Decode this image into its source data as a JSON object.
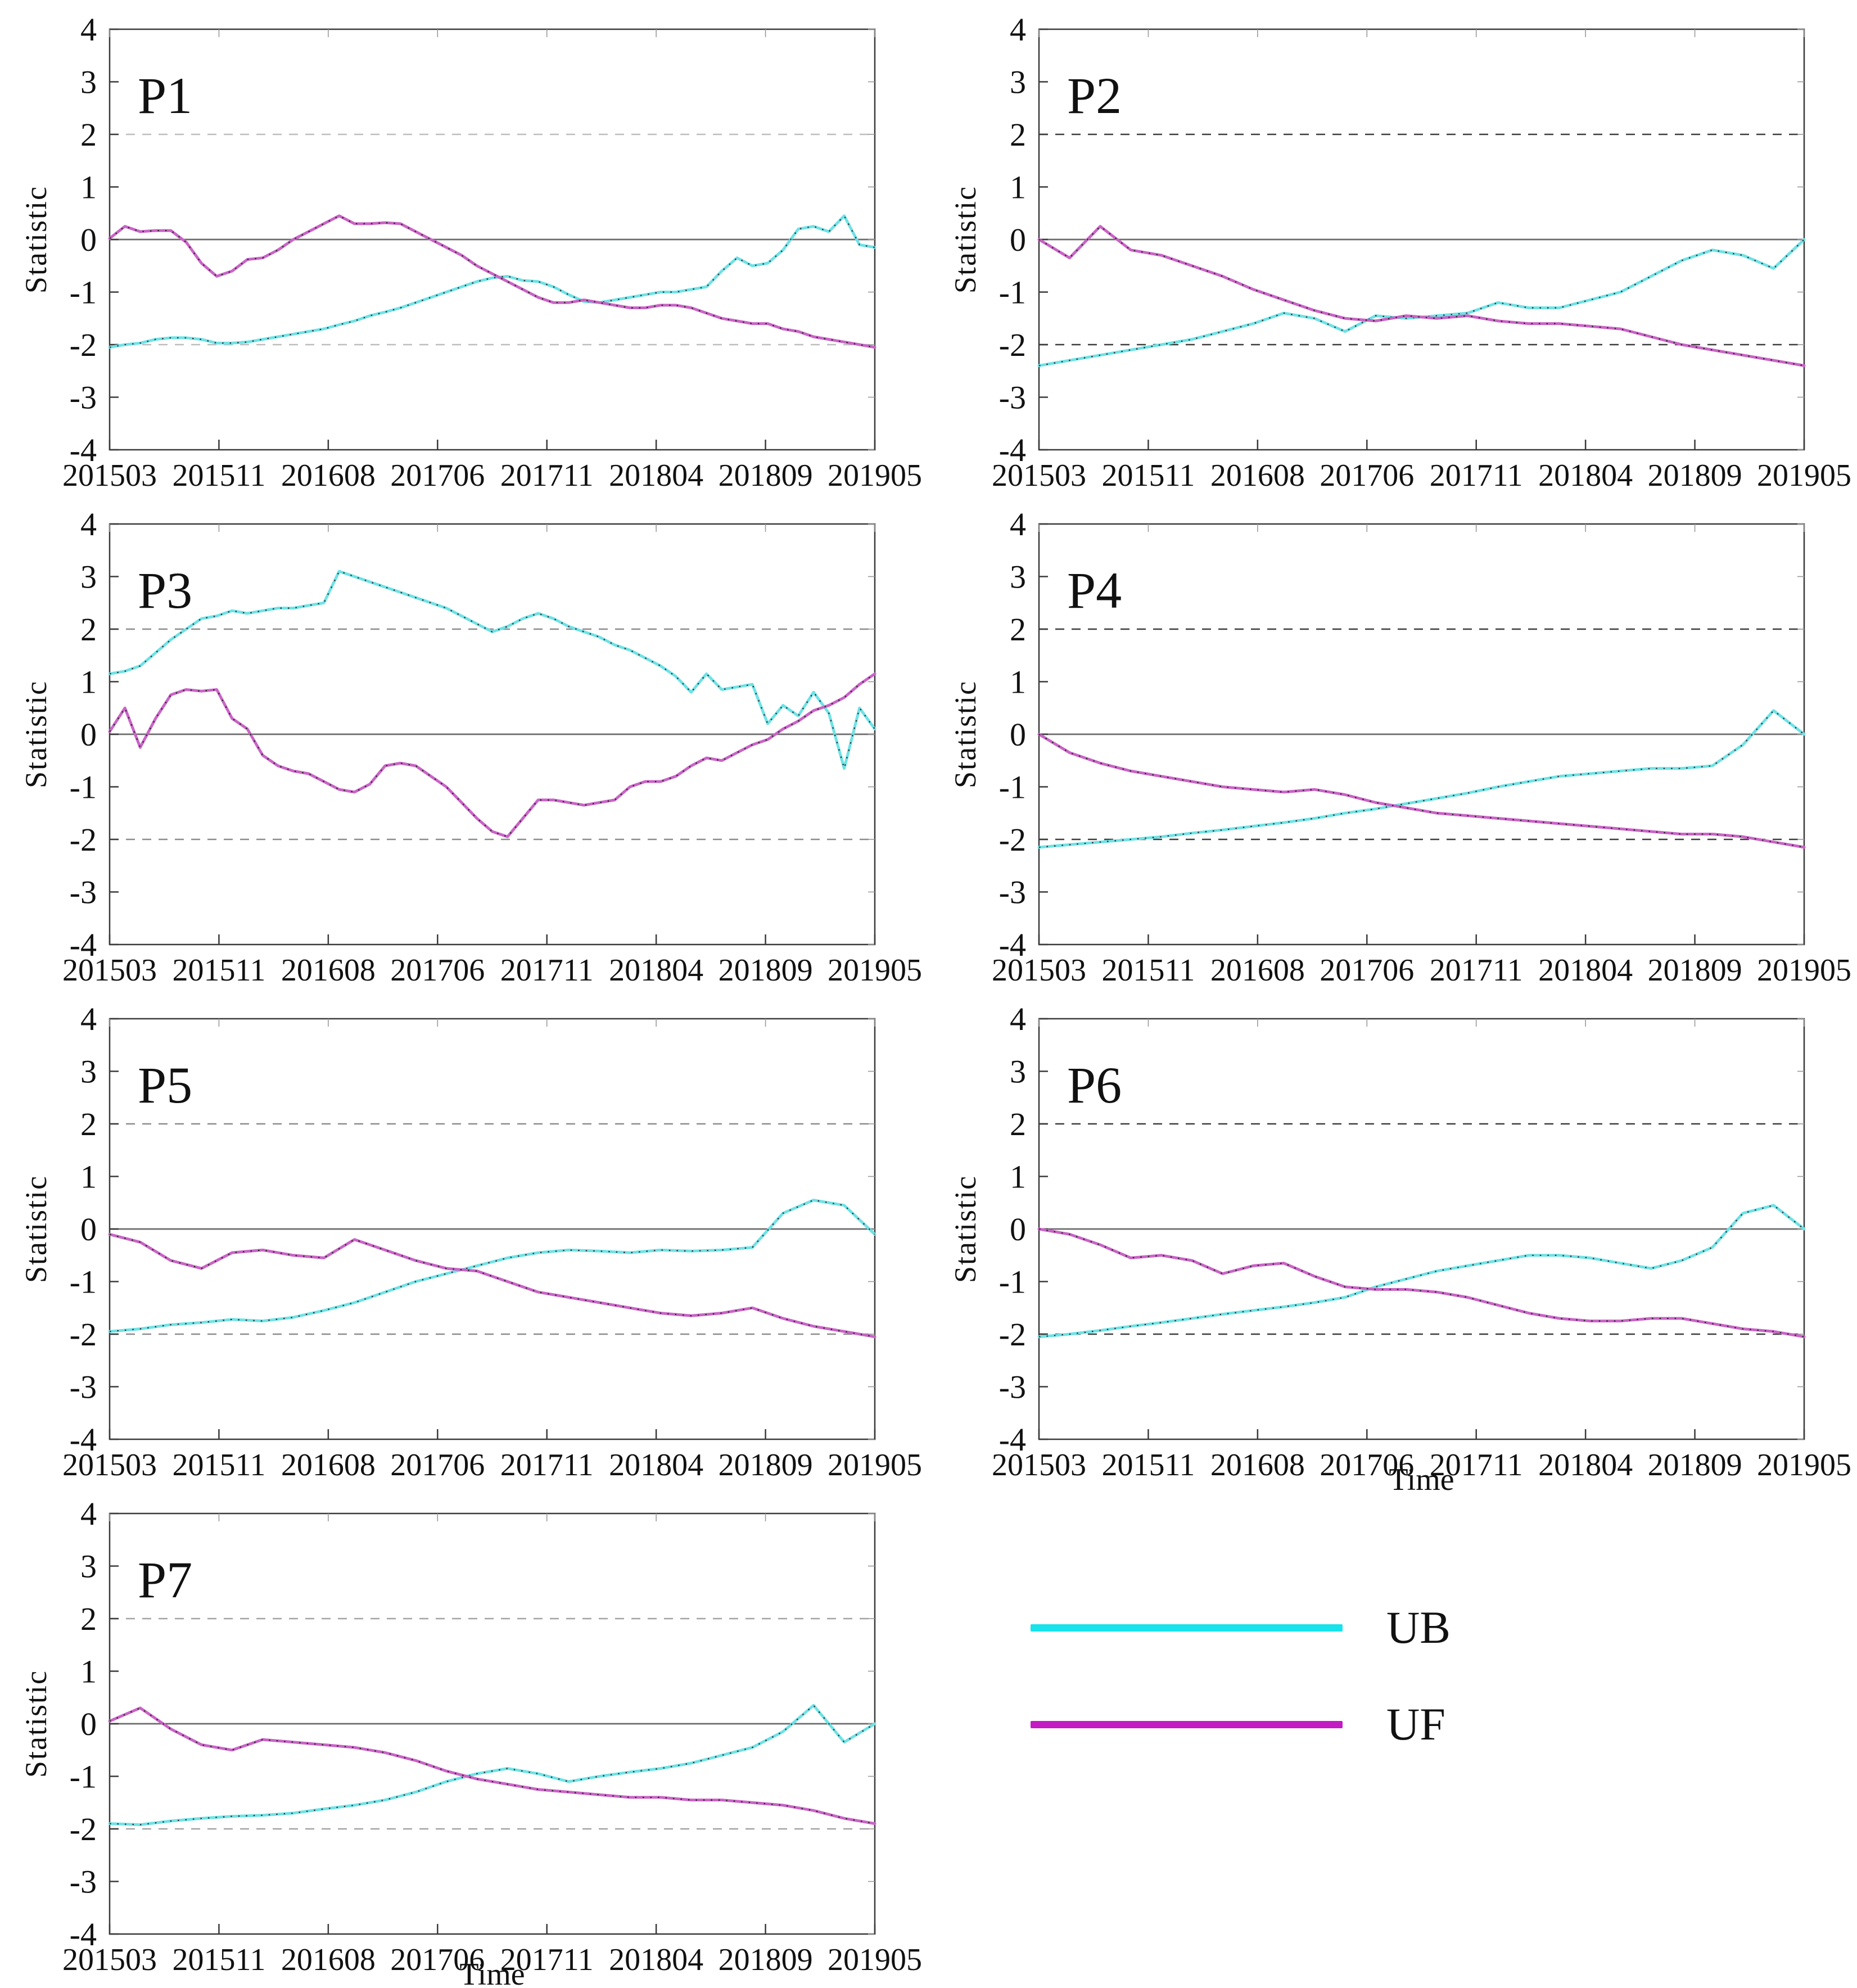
{
  "page": {
    "background": "#ffffff"
  },
  "colors": {
    "ub_line": "#6fe2e6",
    "uf_line": "#c964c6",
    "ub_legend": "#18e2ea",
    "uf_legend": "#c31ac4",
    "marker_overlay": "#1b1b1b",
    "zero_line": "#6b6b6b",
    "axis_frame": "#3a3a3a",
    "minor_tick": "#9a9a9a",
    "text": "#111111"
  },
  "axis": {
    "ylabel": "Statistic",
    "xlabel": "Time",
    "ylim": [
      -4,
      4
    ],
    "yticks": [
      4,
      3,
      2,
      1,
      0,
      -1,
      -2,
      -3,
      -4
    ],
    "xticklabels": [
      "201503",
      "201511",
      "201608",
      "201706",
      "201711",
      "201804",
      "201809",
      "201905"
    ],
    "reference_lines": {
      "zero": 0,
      "upper_threshold": 2,
      "lower_threshold": -2
    },
    "grid": "off",
    "legend_position": "below-right"
  },
  "legend": {
    "items": [
      {
        "label": "UB",
        "color": "#18e2ea"
      },
      {
        "label": "UF",
        "color": "#c31ac4"
      }
    ]
  },
  "chart_data": [
    {
      "id": "P1",
      "type": "line",
      "title": "P1",
      "dash_color": "#bdbdbd",
      "show_time_label": false,
      "series": [
        {
          "name": "UB",
          "values": [
            -2.05,
            -2.0,
            -1.97,
            -1.9,
            -1.87,
            -1.87,
            -1.9,
            -1.97,
            -1.97,
            -1.95,
            -1.9,
            -1.85,
            -1.8,
            -1.75,
            -1.7,
            -1.62,
            -1.55,
            -1.45,
            -1.38,
            -1.3,
            -1.2,
            -1.1,
            -1.0,
            -0.9,
            -0.8,
            -0.73,
            -0.7,
            -0.78,
            -0.8,
            -0.9,
            -1.05,
            -1.18,
            -1.2,
            -1.15,
            -1.1,
            -1.05,
            -1.0,
            -1.0,
            -0.95,
            -0.9,
            -0.6,
            -0.35,
            -0.5,
            -0.45,
            -0.2,
            0.2,
            0.25,
            0.15,
            0.45,
            -0.1,
            -0.15
          ]
        },
        {
          "name": "UF",
          "values": [
            0.02,
            0.25,
            0.15,
            0.17,
            0.17,
            -0.05,
            -0.45,
            -0.7,
            -0.6,
            -0.38,
            -0.35,
            -0.2,
            0.0,
            0.15,
            0.3,
            0.45,
            0.3,
            0.3,
            0.32,
            0.3,
            0.15,
            0.0,
            -0.15,
            -0.3,
            -0.5,
            -0.65,
            -0.8,
            -0.95,
            -1.1,
            -1.2,
            -1.2,
            -1.15,
            -1.2,
            -1.25,
            -1.3,
            -1.3,
            -1.25,
            -1.25,
            -1.3,
            -1.4,
            -1.5,
            -1.55,
            -1.6,
            -1.6,
            -1.7,
            -1.75,
            -1.85,
            -1.9,
            -1.95,
            -2.0,
            -2.05
          ]
        }
      ]
    },
    {
      "id": "P2",
      "type": "line",
      "title": "P2",
      "dash_color": "#3d3d3d",
      "show_time_label": false,
      "series": [
        {
          "name": "UB",
          "values": [
            -2.4,
            -2.3,
            -2.2,
            -2.1,
            -2.0,
            -1.9,
            -1.75,
            -1.6,
            -1.4,
            -1.5,
            -1.75,
            -1.45,
            -1.5,
            -1.45,
            -1.4,
            -1.2,
            -1.3,
            -1.3,
            -1.15,
            -1.0,
            -0.7,
            -0.4,
            -0.2,
            -0.3,
            -0.55,
            0.0
          ]
        },
        {
          "name": "UF",
          "values": [
            0.0,
            -0.35,
            0.25,
            -0.2,
            -0.3,
            -0.5,
            -0.7,
            -0.95,
            -1.15,
            -1.35,
            -1.5,
            -1.55,
            -1.45,
            -1.5,
            -1.45,
            -1.55,
            -1.6,
            -1.6,
            -1.65,
            -1.7,
            -1.85,
            -2.0,
            -2.1,
            -2.2,
            -2.3,
            -2.4
          ]
        }
      ]
    },
    {
      "id": "P3",
      "type": "line",
      "title": "P3",
      "dash_color": "#8c8c8c",
      "show_time_label": false,
      "series": [
        {
          "name": "UB",
          "values": [
            1.15,
            1.2,
            1.3,
            1.55,
            1.8,
            2.0,
            2.2,
            2.25,
            2.35,
            2.3,
            2.35,
            2.4,
            2.4,
            2.45,
            2.5,
            3.1,
            3.0,
            2.9,
            2.8,
            2.7,
            2.6,
            2.5,
            2.4,
            2.25,
            2.1,
            1.95,
            2.05,
            2.2,
            2.3,
            2.2,
            2.05,
            1.95,
            1.85,
            1.7,
            1.6,
            1.45,
            1.3,
            1.1,
            0.8,
            1.15,
            0.85,
            0.9,
            0.95,
            0.2,
            0.55,
            0.35,
            0.8,
            0.4,
            -0.65,
            0.5,
            0.1
          ]
        },
        {
          "name": "UF",
          "values": [
            0.05,
            0.5,
            -0.25,
            0.3,
            0.75,
            0.85,
            0.82,
            0.85,
            0.3,
            0.1,
            -0.4,
            -0.6,
            -0.7,
            -0.75,
            -0.9,
            -1.05,
            -1.1,
            -0.95,
            -0.6,
            -0.55,
            -0.6,
            -0.8,
            -1.0,
            -1.3,
            -1.6,
            -1.85,
            -1.95,
            -1.6,
            -1.25,
            -1.25,
            -1.3,
            -1.35,
            -1.3,
            -1.25,
            -1.0,
            -0.9,
            -0.9,
            -0.8,
            -0.6,
            -0.45,
            -0.5,
            -0.35,
            -0.2,
            -0.1,
            0.1,
            0.25,
            0.45,
            0.55,
            0.7,
            0.95,
            1.15
          ]
        }
      ]
    },
    {
      "id": "P4",
      "type": "line",
      "title": "P4",
      "dash_color": "#3d3d3d",
      "show_time_label": false,
      "series": [
        {
          "name": "UB",
          "values": [
            -2.15,
            -2.1,
            -2.05,
            -2.0,
            -1.95,
            -1.88,
            -1.82,
            -1.75,
            -1.68,
            -1.6,
            -1.5,
            -1.42,
            -1.32,
            -1.22,
            -1.12,
            -1.0,
            -0.9,
            -0.8,
            -0.75,
            -0.7,
            -0.65,
            -0.65,
            -0.6,
            -0.2,
            0.45,
            0.0
          ]
        },
        {
          "name": "UF",
          "values": [
            0.0,
            -0.35,
            -0.55,
            -0.7,
            -0.8,
            -0.9,
            -1.0,
            -1.05,
            -1.1,
            -1.05,
            -1.15,
            -1.3,
            -1.4,
            -1.5,
            -1.55,
            -1.6,
            -1.65,
            -1.7,
            -1.75,
            -1.8,
            -1.85,
            -1.9,
            -1.9,
            -1.95,
            -2.05,
            -2.15
          ]
        }
      ]
    },
    {
      "id": "P5",
      "type": "line",
      "title": "P5",
      "dash_color": "#8c8c8c",
      "show_time_label": false,
      "series": [
        {
          "name": "UB",
          "values": [
            -1.95,
            -1.9,
            -1.82,
            -1.78,
            -1.72,
            -1.75,
            -1.68,
            -1.55,
            -1.4,
            -1.2,
            -1.0,
            -0.85,
            -0.7,
            -0.55,
            -0.45,
            -0.4,
            -0.42,
            -0.45,
            -0.4,
            -0.42,
            -0.4,
            -0.35,
            0.3,
            0.55,
            0.45,
            -0.1
          ]
        },
        {
          "name": "UF",
          "values": [
            -0.1,
            -0.25,
            -0.6,
            -0.75,
            -0.45,
            -0.4,
            -0.5,
            -0.55,
            -0.2,
            -0.4,
            -0.6,
            -0.75,
            -0.8,
            -1.0,
            -1.2,
            -1.3,
            -1.4,
            -1.5,
            -1.6,
            -1.65,
            -1.6,
            -1.5,
            -1.7,
            -1.85,
            -1.95,
            -2.05
          ]
        }
      ]
    },
    {
      "id": "P6",
      "type": "line",
      "title": "P6",
      "dash_color": "#3d3d3d",
      "show_time_label": true,
      "series": [
        {
          "name": "UB",
          "values": [
            -2.05,
            -2.0,
            -1.93,
            -1.85,
            -1.78,
            -1.7,
            -1.62,
            -1.55,
            -1.48,
            -1.4,
            -1.3,
            -1.1,
            -0.95,
            -0.8,
            -0.7,
            -0.6,
            -0.5,
            -0.5,
            -0.55,
            -0.65,
            -0.75,
            -0.6,
            -0.35,
            0.3,
            0.45,
            0.0
          ]
        },
        {
          "name": "UF",
          "values": [
            0.0,
            -0.1,
            -0.3,
            -0.55,
            -0.5,
            -0.6,
            -0.85,
            -0.7,
            -0.65,
            -0.9,
            -1.1,
            -1.15,
            -1.15,
            -1.2,
            -1.3,
            -1.45,
            -1.6,
            -1.7,
            -1.75,
            -1.75,
            -1.7,
            -1.7,
            -1.8,
            -1.9,
            -1.95,
            -2.05
          ]
        }
      ]
    },
    {
      "id": "P7",
      "type": "line",
      "title": "P7",
      "dash_color": "#a3a3a3",
      "show_time_label": true,
      "series": [
        {
          "name": "UB",
          "values": [
            -1.9,
            -1.92,
            -1.85,
            -1.8,
            -1.76,
            -1.74,
            -1.7,
            -1.62,
            -1.55,
            -1.45,
            -1.3,
            -1.1,
            -0.95,
            -0.85,
            -0.95,
            -1.1,
            -1.0,
            -0.92,
            -0.85,
            -0.75,
            -0.6,
            -0.45,
            -0.15,
            0.35,
            -0.35,
            0.0
          ]
        },
        {
          "name": "UF",
          "values": [
            0.05,
            0.3,
            -0.1,
            -0.4,
            -0.5,
            -0.3,
            -0.35,
            -0.4,
            -0.45,
            -0.55,
            -0.7,
            -0.9,
            -1.05,
            -1.15,
            -1.25,
            -1.3,
            -1.35,
            -1.4,
            -1.4,
            -1.45,
            -1.45,
            -1.5,
            -1.55,
            -1.65,
            -1.8,
            -1.9
          ]
        }
      ]
    }
  ]
}
